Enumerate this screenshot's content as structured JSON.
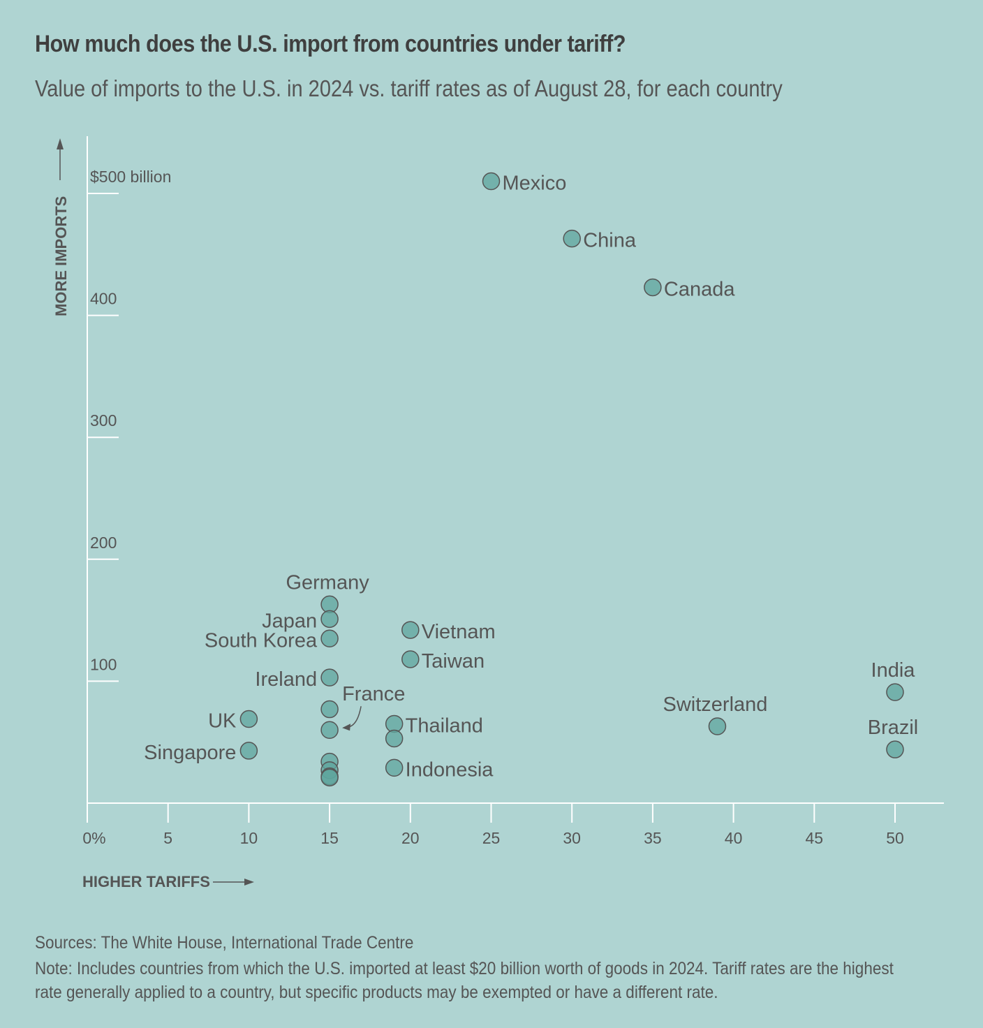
{
  "title": "How much does the U.S. import from countries under tariff?",
  "subtitle": "Value of imports to the U.S. in 2024 vs. tariff rates as of August 28, for each country",
  "footer": {
    "sources": "Sources: The White House, International Trade Centre",
    "note_line1": "Note: Includes countries from which the U.S. imported at least $20 billion worth of goods in 2024. Tariff rates are the highest",
    "note_line2": "rate generally applied to a country, but specific products may be exempted or have a different rate."
  },
  "colors": {
    "background": "#afd4d2",
    "point": "#5fa69d",
    "stroke": "#555555",
    "text": "#555555"
  },
  "chart_data": {
    "type": "scatter",
    "xlabel": "HIGHER TARIFFS",
    "ylabel": "MORE IMPORTS",
    "xlim": [
      0,
      53
    ],
    "ylim": [
      0,
      545
    ],
    "x_ticks": [
      0,
      5,
      10,
      15,
      20,
      25,
      30,
      35,
      40,
      45,
      50
    ],
    "x_tick_labels": [
      "0%",
      "5",
      "10",
      "15",
      "20",
      "25",
      "30",
      "35",
      "40",
      "45",
      "50"
    ],
    "y_ticks": [
      100,
      200,
      300,
      400,
      500
    ],
    "y_tick_labels": [
      "100",
      "200",
      "300",
      "400",
      "$500 billion"
    ],
    "points": [
      {
        "label": "Mexico",
        "x": 25,
        "y": 510,
        "pos": "right"
      },
      {
        "label": "China",
        "x": 30,
        "y": 463,
        "pos": "right"
      },
      {
        "label": "Canada",
        "x": 35,
        "y": 423,
        "pos": "right"
      },
      {
        "label": "Germany",
        "x": 15,
        "y": 163,
        "pos": "top"
      },
      {
        "label": "Japan",
        "x": 15,
        "y": 151,
        "pos": "left"
      },
      {
        "label": "South Korea",
        "x": 15,
        "y": 135,
        "pos": "left"
      },
      {
        "label": "Ireland",
        "x": 15,
        "y": 103,
        "pos": "left"
      },
      {
        "label": "",
        "x": 15,
        "y": 77,
        "pos": "none"
      },
      {
        "label": "France",
        "x": 15,
        "y": 60,
        "pos": "arrow"
      },
      {
        "label": "",
        "x": 15,
        "y": 34,
        "pos": "none"
      },
      {
        "label": "",
        "x": 15,
        "y": 27,
        "pos": "none"
      },
      {
        "label": "",
        "x": 15,
        "y": 22,
        "pos": "none"
      },
      {
        "label": "",
        "x": 15,
        "y": 21,
        "pos": "none"
      },
      {
        "label": "UK",
        "x": 10,
        "y": 69,
        "pos": "left"
      },
      {
        "label": "Singapore",
        "x": 10,
        "y": 43,
        "pos": "left"
      },
      {
        "label": "Vietnam",
        "x": 20,
        "y": 142,
        "pos": "right"
      },
      {
        "label": "Taiwan",
        "x": 20,
        "y": 118,
        "pos": "right"
      },
      {
        "label": "Thailand",
        "x": 19,
        "y": 65,
        "pos": "right"
      },
      {
        "label": "",
        "x": 19,
        "y": 53,
        "pos": "none"
      },
      {
        "label": "Indonesia",
        "x": 19,
        "y": 29,
        "pos": "right"
      },
      {
        "label": "Switzerland",
        "x": 39,
        "y": 63,
        "pos": "top"
      },
      {
        "label": "India",
        "x": 50,
        "y": 91,
        "pos": "top"
      },
      {
        "label": "Brazil",
        "x": 50,
        "y": 44,
        "pos": "top"
      }
    ]
  }
}
